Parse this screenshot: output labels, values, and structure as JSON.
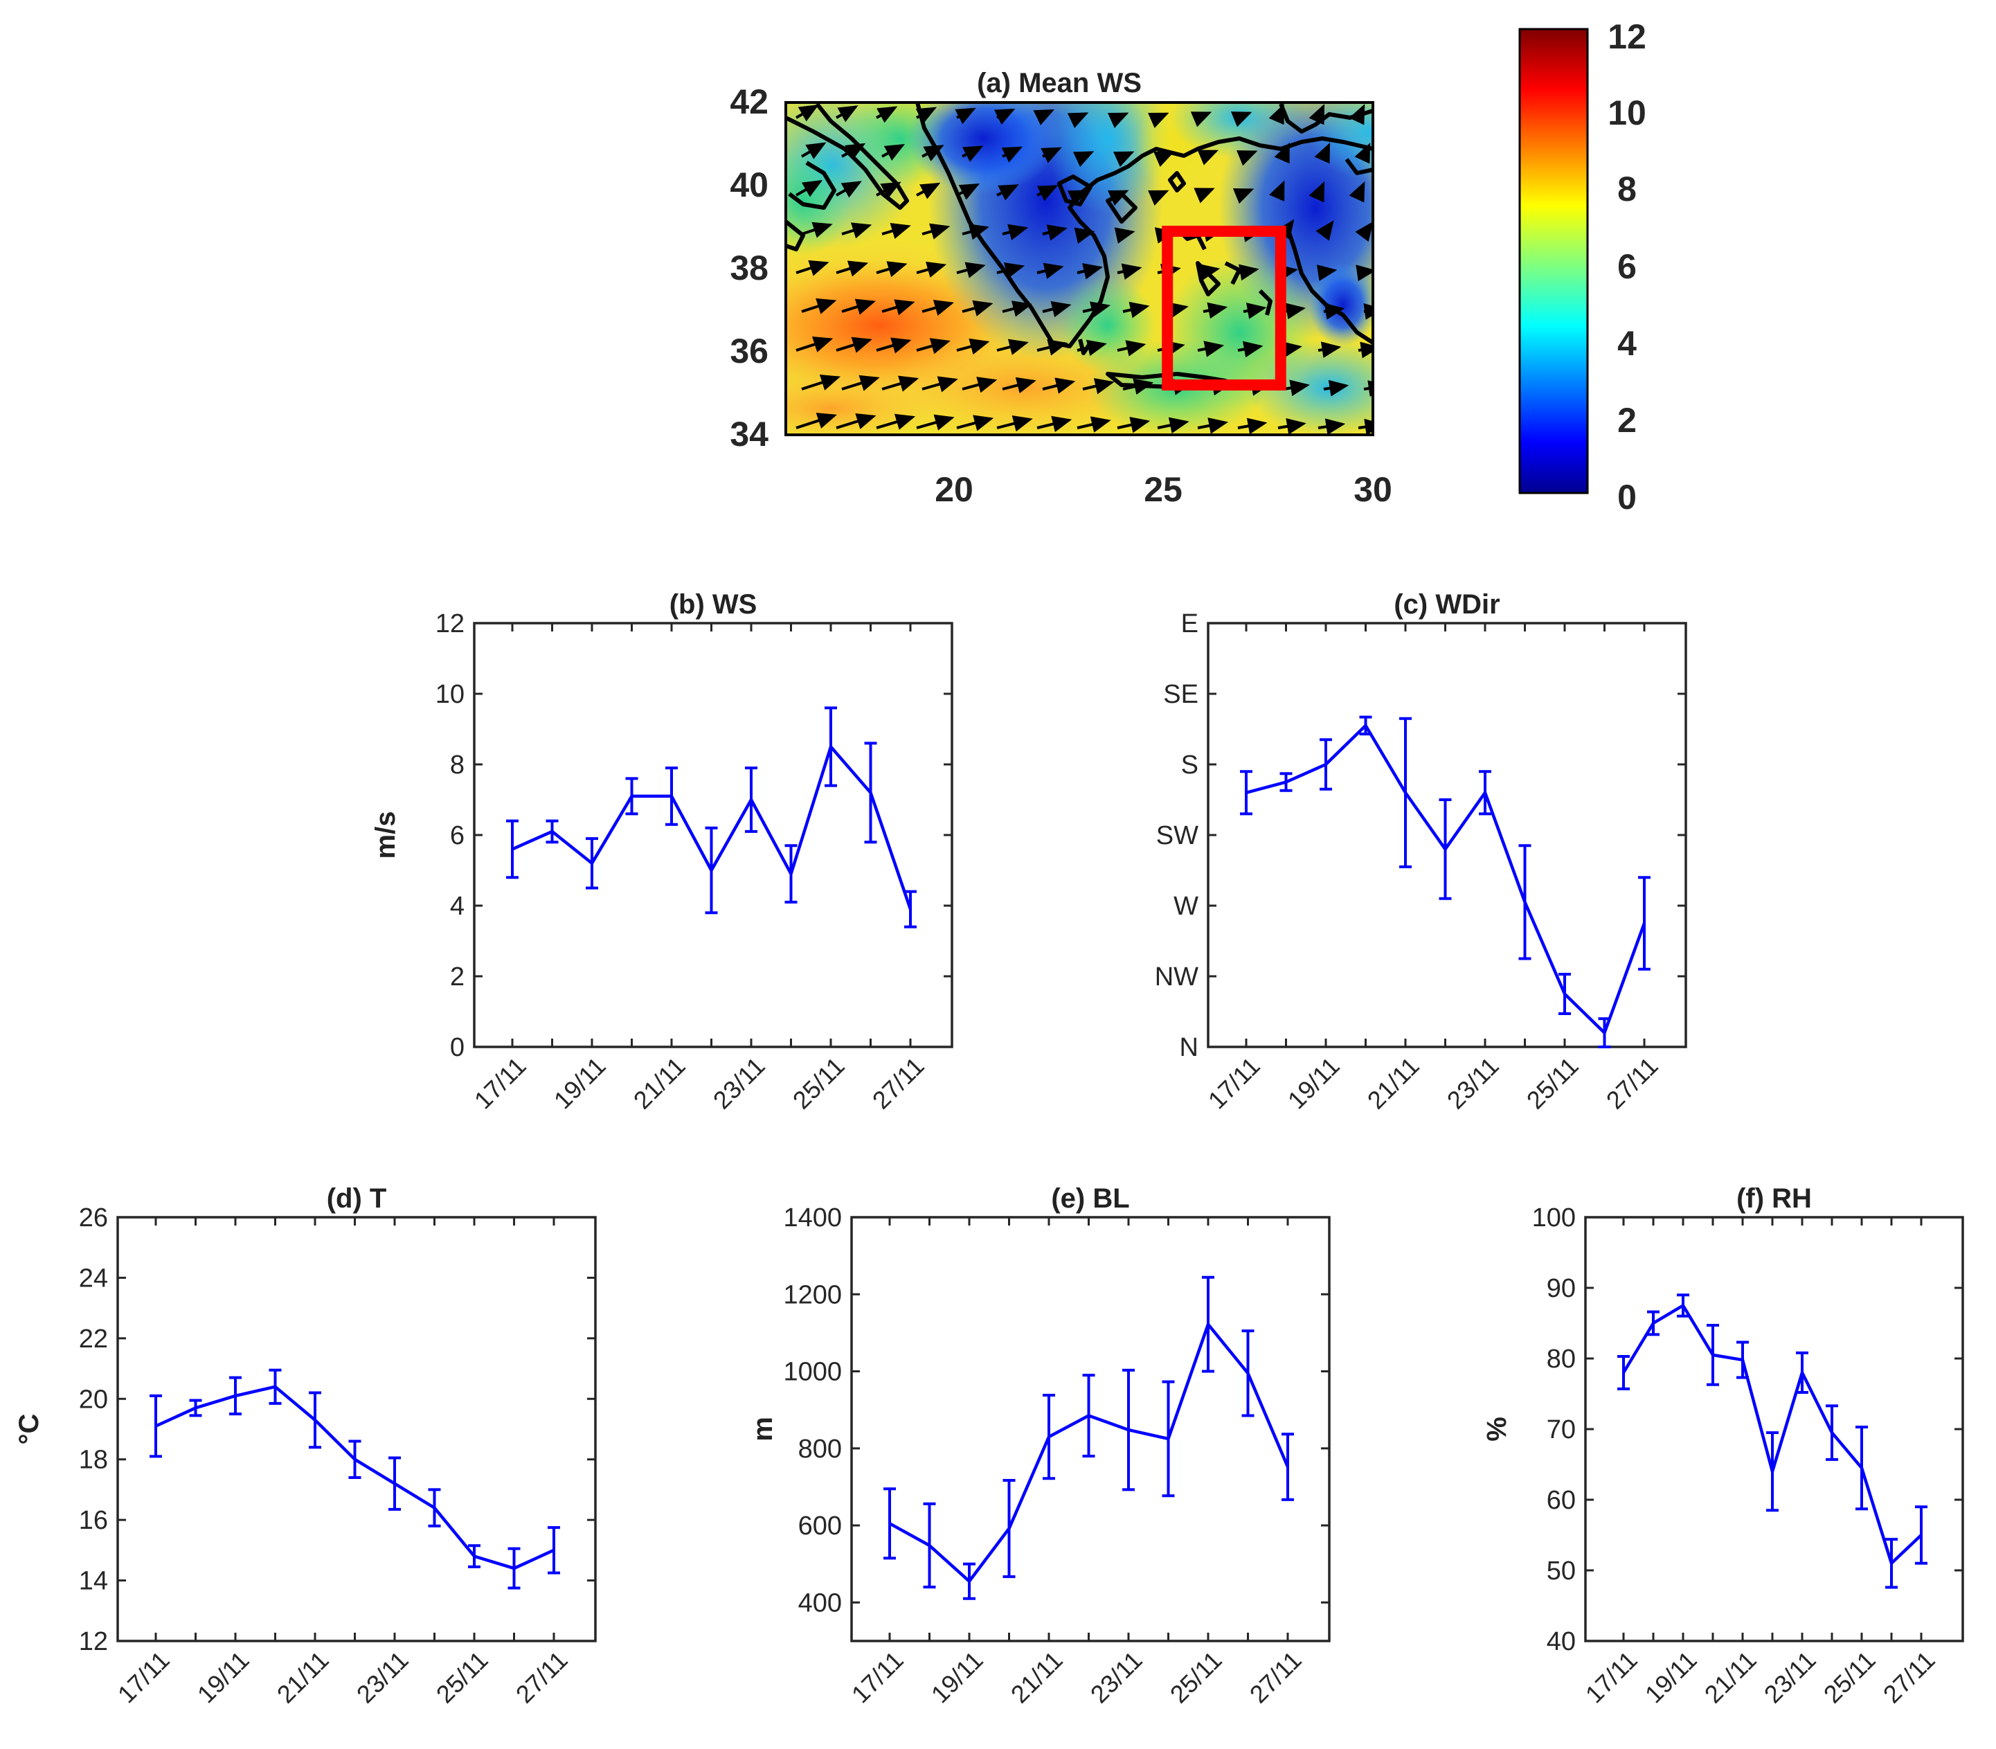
{
  "chart_data": [
    {
      "id": "a",
      "type": "heatmap",
      "title": "(a)  Mean WS",
      "x_ticks": [
        20,
        25,
        30
      ],
      "y_ticks": [
        42,
        40,
        38,
        36,
        34
      ],
      "xlim": [
        16,
        30
      ],
      "ylim": [
        34,
        42
      ],
      "highlight_box": {
        "lon": [
          25.1,
          27.8
        ],
        "lat": [
          35.2,
          38.9
        ],
        "color": "#ff0000"
      },
      "colorbar": {
        "ticks": [
          12,
          10,
          8,
          6,
          4,
          2,
          0
        ],
        "range": [
          0,
          12
        ],
        "colormap": "jet"
      }
    },
    {
      "id": "b",
      "type": "line",
      "title": "(b)  WS",
      "ylabel": "m/s",
      "ylim": [
        0,
        12
      ],
      "y_ticks": [
        "0",
        "2",
        "4",
        "6",
        "8",
        "10",
        "12"
      ],
      "x_ticks": [
        "17/11",
        "19/11",
        "21/11",
        "23/11",
        "25/11",
        "27/11"
      ],
      "x": [
        "17/11",
        "18/11",
        "19/11",
        "20/11",
        "21/11",
        "22/11",
        "23/11",
        "24/11",
        "25/11",
        "26/11",
        "27/11"
      ],
      "series": [
        {
          "values": [
            5.6,
            6.1,
            5.2,
            7.1,
            7.1,
            5.0,
            7.0,
            4.9,
            8.5,
            7.2,
            3.9
          ],
          "errors": [
            0.8,
            0.3,
            0.7,
            0.5,
            0.8,
            1.2,
            0.9,
            0.8,
            1.1,
            1.4,
            0.5
          ],
          "color": "#0000ff"
        }
      ]
    },
    {
      "id": "c",
      "type": "line",
      "title": "(c)  WDir",
      "ylabel": "",
      "ylim": [
        0,
        6
      ],
      "y_ticks": [
        "N",
        "NW",
        "W",
        "SW",
        "S",
        "SE",
        "E"
      ],
      "x_ticks": [
        "17/11",
        "19/11",
        "21/11",
        "23/11",
        "25/11",
        "27/11"
      ],
      "x": [
        "17/11",
        "18/11",
        "19/11",
        "20/11",
        "21/11",
        "22/11",
        "23/11",
        "24/11",
        "25/11",
        "26/11",
        "27/11"
      ],
      "series": [
        {
          "values": [
            3.6,
            3.75,
            4.0,
            4.55,
            3.6,
            2.8,
            3.6,
            2.05,
            0.75,
            0.2,
            1.75
          ],
          "errors": [
            0.3,
            0.12,
            0.35,
            0.12,
            1.05,
            0.7,
            0.3,
            0.8,
            0.28,
            0.2,
            0.65
          ],
          "color": "#0000ff"
        }
      ]
    },
    {
      "id": "d",
      "type": "line",
      "title": "(d)  T",
      "ylabel": "°C",
      "ylim": [
        12,
        26
      ],
      "y_ticks": [
        "12",
        "14",
        "16",
        "18",
        "20",
        "22",
        "24",
        "26"
      ],
      "x_ticks": [
        "17/11",
        "19/11",
        "21/11",
        "23/11",
        "25/11",
        "27/11"
      ],
      "x": [
        "17/11",
        "18/11",
        "19/11",
        "20/11",
        "21/11",
        "22/11",
        "23/11",
        "24/11",
        "25/11",
        "26/11",
        "27/11"
      ],
      "series": [
        {
          "values": [
            19.1,
            19.7,
            20.1,
            20.4,
            19.3,
            18.0,
            17.2,
            16.4,
            14.8,
            14.4,
            15.0
          ],
          "errors": [
            1.0,
            0.25,
            0.6,
            0.55,
            0.9,
            0.6,
            0.85,
            0.6,
            0.35,
            0.65,
            0.75
          ],
          "color": "#0000ff"
        }
      ]
    },
    {
      "id": "e",
      "type": "line",
      "title": "(e)  BL",
      "ylabel": "m",
      "ylim": [
        300,
        1400
      ],
      "y_ticks": [
        "400",
        "600",
        "800",
        "1000",
        "1200",
        "1400"
      ],
      "x_ticks": [
        "17/11",
        "19/11",
        "21/11",
        "23/11",
        "25/11",
        "27/11"
      ],
      "x": [
        "17/11",
        "18/11",
        "19/11",
        "20/11",
        "21/11",
        "22/11",
        "23/11",
        "24/11",
        "25/11",
        "26/11",
        "27/11"
      ],
      "series": [
        {
          "values": [
            605,
            548,
            455,
            592,
            830,
            885,
            848,
            825,
            1122,
            995,
            752
          ],
          "errors": [
            90,
            108,
            45,
            125,
            108,
            105,
            155,
            148,
            122,
            110,
            85
          ],
          "color": "#0000ff"
        }
      ]
    },
    {
      "id": "f",
      "type": "line",
      "title": "(f)  RH",
      "ylabel": "%",
      "ylim": [
        40,
        100
      ],
      "y_ticks": [
        "40",
        "50",
        "60",
        "70",
        "80",
        "90",
        "100"
      ],
      "x_ticks": [
        "17/11",
        "19/11",
        "21/11",
        "23/11",
        "25/11",
        "27/11"
      ],
      "x": [
        "17/11",
        "18/11",
        "19/11",
        "20/11",
        "21/11",
        "22/11",
        "23/11",
        "24/11",
        "25/11",
        "26/11",
        "27/11"
      ],
      "series": [
        {
          "values": [
            78,
            85,
            87.5,
            80.5,
            79.8,
            64,
            78,
            69.5,
            64.5,
            51,
            55
          ],
          "errors": [
            2.3,
            1.6,
            1.5,
            4.2,
            2.5,
            5.5,
            2.8,
            3.8,
            5.8,
            3.4,
            4.0
          ],
          "color": "#0000ff"
        }
      ]
    }
  ]
}
